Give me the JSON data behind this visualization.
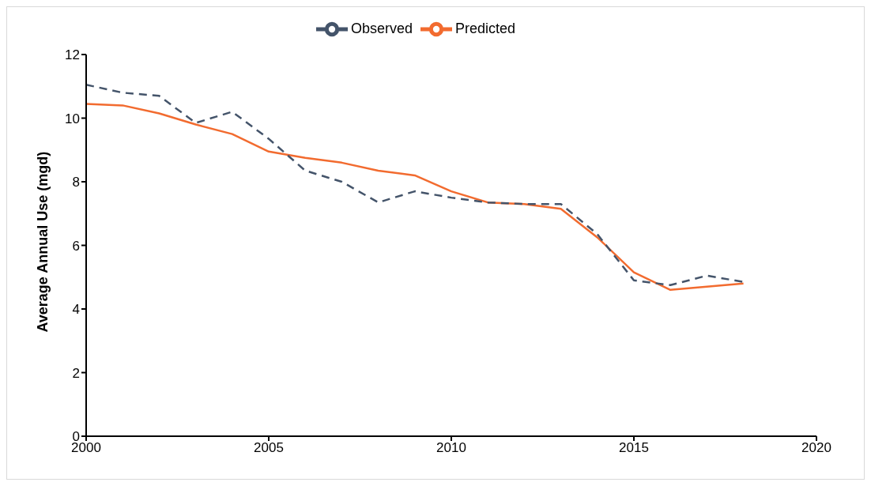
{
  "chart_data": {
    "type": "line",
    "ylabel": "Average Annual Use (mgd)",
    "x": [
      2000,
      2001,
      2002,
      2003,
      2004,
      2005,
      2006,
      2007,
      2008,
      2009,
      2010,
      2011,
      2012,
      2013,
      2014,
      2015,
      2016,
      2017,
      2018
    ],
    "series": [
      {
        "name": "Predicted",
        "color": "#f26b2f",
        "line_style": "solid",
        "values": [
          10.45,
          10.4,
          10.15,
          9.8,
          9.5,
          8.95,
          8.75,
          8.6,
          8.35,
          8.2,
          7.7,
          7.35,
          7.3,
          7.15,
          6.25,
          5.15,
          4.6,
          4.7,
          4.8
        ]
      },
      {
        "name": "Observed",
        "color": "#44546a",
        "line_style": "dashed",
        "values": [
          11.05,
          10.8,
          10.7,
          9.85,
          10.2,
          9.35,
          8.35,
          8.0,
          7.35,
          7.7,
          7.5,
          7.35,
          7.3,
          7.3,
          6.35,
          4.9,
          4.75,
          5.05,
          4.85
        ]
      }
    ],
    "xlim": [
      2000,
      2020
    ],
    "xticks": [
      2000,
      2005,
      2010,
      2015,
      2020
    ],
    "ylim": [
      0,
      12
    ],
    "yticks": [
      0,
      2,
      4,
      6,
      8,
      10,
      12
    ],
    "grid": false,
    "legend": "top",
    "marker": "none"
  }
}
